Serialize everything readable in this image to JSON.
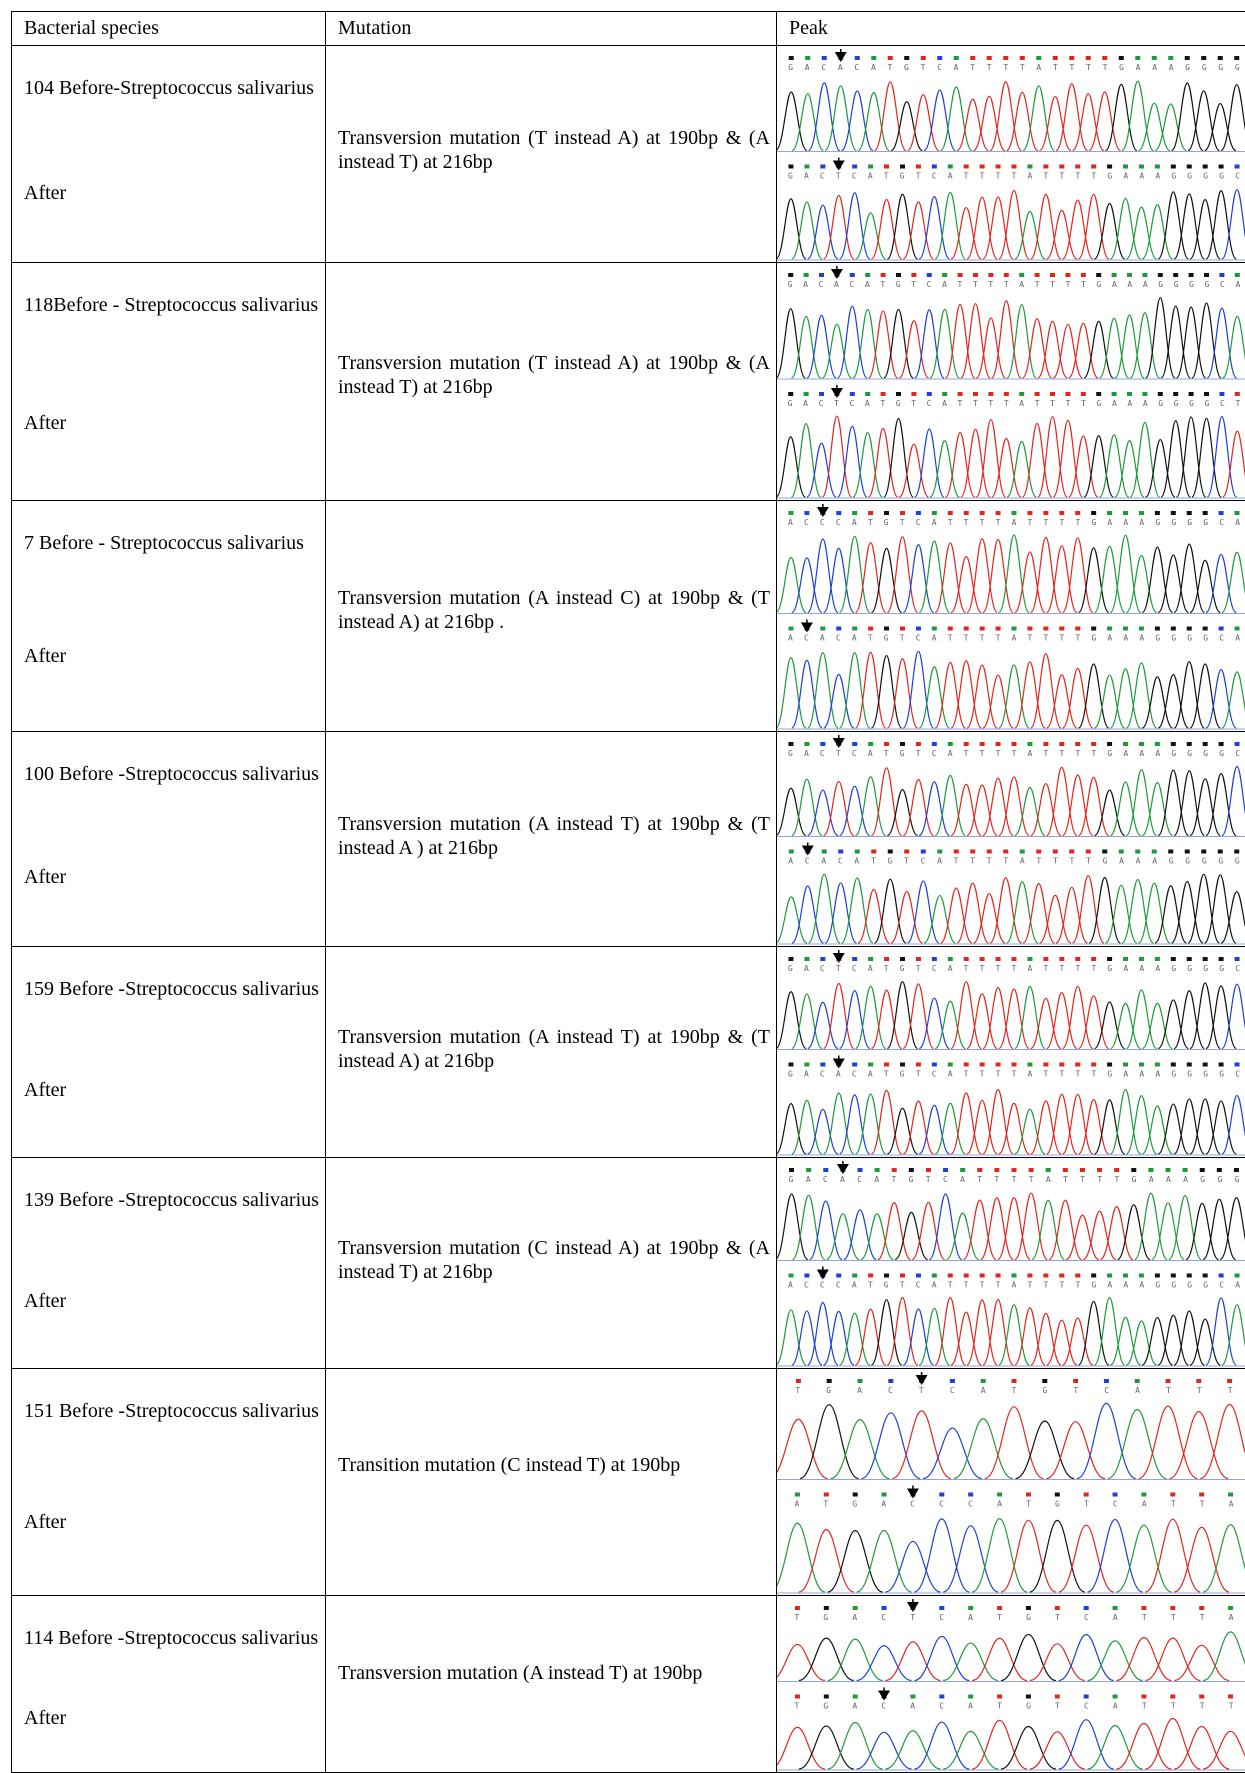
{
  "table": {
    "header": [
      "Bacterial species",
      "Mutation",
      "Peak"
    ],
    "rows": [
      {
        "species": "104  Before-Streptococcus salivarius",
        "after": "After",
        "mutation": "Transversion  mutation (T instead A) at 190bp  & (A instead T)  at 216bp",
        "before_bases": "GACACATGTCATTTTATTTTGAAAGGGG",
        "after_bases": "GACTCATGTCATTTTATTTTGAAAGGGGC"
      },
      {
        "species": "118Before - Streptococcus salivarius",
        "after": "After",
        "mutation": "Transversion mutation (T instead A) at 190bp  & (A instead T)  at 216bp",
        "before_bases": "GACACATGTCATTTTATTTTGAAAGGGGCA",
        "after_bases": "GACTCATGTCATTTTATTTTGAAAGGGGCT"
      },
      {
        "species": "7 Before   - Streptococcus salivarius",
        "after": "After",
        "mutation": "Transversion mutation (A instead  C) at 190bp  & (T instead A)  at 216bp .",
        "before_bases": "ACCCATGTCATTTTATTTTGAAAGGGGCA",
        "after_bases": "ACACATGTCATTTTATTTTGAAAGGGGCA"
      },
      {
        "species": "100 Before -Streptococcus salivarius",
        "after": "After",
        "mutation": "Transversion  mutation (A instead T) at 190bp & (T instead A ) at 216bp",
        "before_bases": "GACTCATGTCATTTTATTTTGAAAGGGGC",
        "after_bases": "ACACATGTCATTTTATTTTGAAAGGGGG"
      },
      {
        "species": "159 Before -Streptococcus salivarius",
        "after": "After",
        "mutation": "Transversion  mutation (A instead T) at 190bp & (T instead A)  at 216bp",
        "before_bases": "GACTCATGTCATTTTATTTTGAAAGGGGC",
        "after_bases": "GACACATGTCATTTTATTTTGAAAGGGGC"
      },
      {
        "species": "139 Before -Streptococcus salivarius",
        "after": "After",
        "mutation": "Transversion mutation (C instead A) at 190bp & (A instead T) at 216bp",
        "before_bases": "GACACATGTCATTTTATTTTGAAAGGG",
        "after_bases": "ACCCATGTCATTTTATTTTGAAAGGGGCA"
      },
      {
        "species": "151 Before -Streptococcus salivarius",
        "after": "After",
        "mutation": "Transition mutation (C instead T) at 190bp",
        "before_bases": "TGACTCATGTCATTT",
        "after_bases": "ATGACCCATGTCATTA"
      },
      {
        "species": "114 Before -Streptococcus salivarius",
        "after": "After",
        "mutation": "Transversion mutation (A instead T) at 190bp",
        "before_bases": "TGACTCATGTCATTTA",
        "after_bases": "TGACACATGTCATTTT"
      }
    ]
  }
}
